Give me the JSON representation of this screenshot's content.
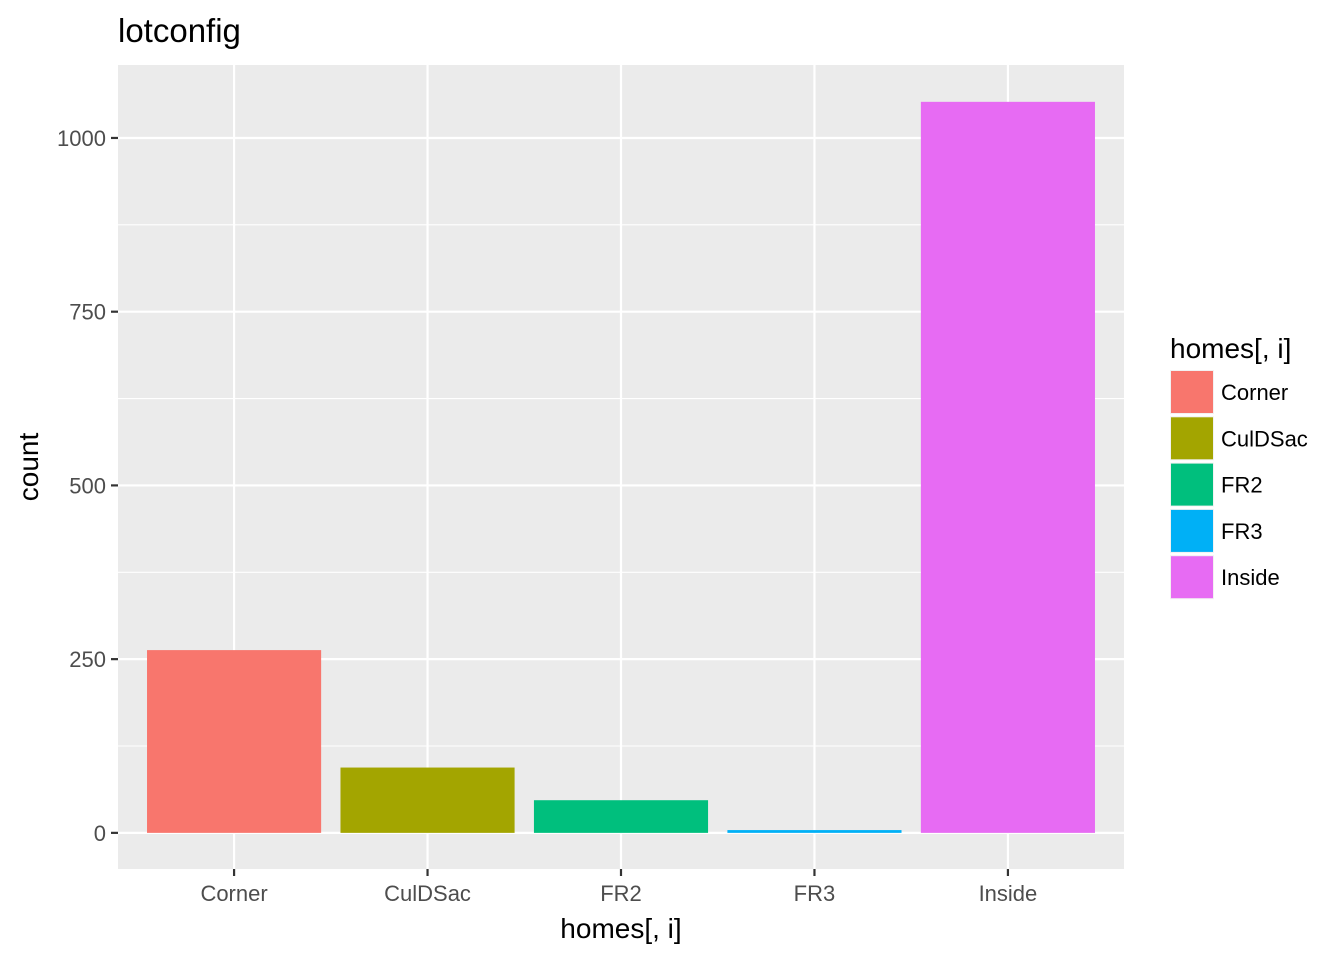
{
  "chart_data": {
    "type": "bar",
    "title": "lotconfig",
    "xlabel": "homes[, i]",
    "ylabel": "count",
    "categories": [
      "Corner",
      "CulDSac",
      "FR2",
      "FR3",
      "Inside"
    ],
    "values": [
      263,
      94,
      47,
      4,
      1052
    ],
    "colors": [
      "#F8766D",
      "#A3A500",
      "#00BF7D",
      "#00B0F6",
      "#E76BF3"
    ],
    "ylim": [
      -52,
      1105
    ],
    "yticks": [
      0,
      250,
      500,
      750,
      1000
    ],
    "yticks_minor": [
      125,
      375,
      625,
      875
    ],
    "grid": true,
    "legend": {
      "title": "homes[, i]",
      "position": "right",
      "entries": [
        "Corner",
        "CulDSac",
        "FR2",
        "FR3",
        "Inside"
      ]
    }
  }
}
